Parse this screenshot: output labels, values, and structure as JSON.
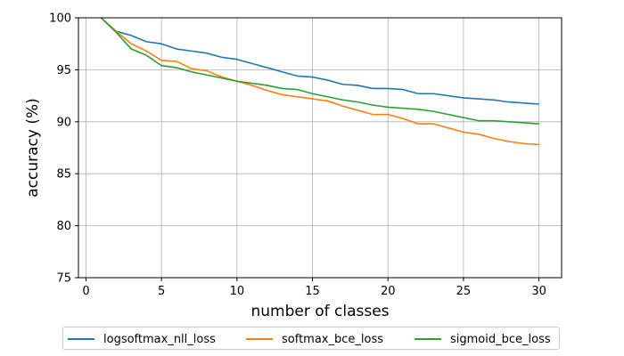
{
  "chart_data": {
    "type": "line",
    "xlabel": "number of classes",
    "ylabel": "accuracy (%)",
    "xlim": [
      -0.5,
      31.5
    ],
    "ylim": [
      75,
      100
    ],
    "xticks": [
      0,
      5,
      10,
      15,
      20,
      25,
      30
    ],
    "yticks": [
      75,
      80,
      85,
      90,
      95,
      100
    ],
    "grid": true,
    "legend_position": "bottom-center",
    "x": [
      1,
      2,
      3,
      4,
      5,
      6,
      7,
      8,
      9,
      10,
      11,
      12,
      13,
      14,
      15,
      16,
      17,
      18,
      19,
      20,
      21,
      22,
      23,
      24,
      25,
      26,
      27,
      28,
      29,
      30
    ],
    "series": [
      {
        "name": "logsoftmax_nll_loss",
        "color": "#1f77b4",
        "values": [
          100.0,
          98.7,
          98.3,
          97.7,
          97.5,
          97.0,
          96.8,
          96.6,
          96.2,
          96.0,
          95.6,
          95.2,
          94.8,
          94.4,
          94.3,
          94.0,
          93.6,
          93.5,
          93.2,
          93.2,
          93.1,
          92.7,
          92.7,
          92.5,
          92.3,
          92.2,
          92.1,
          91.9,
          91.8,
          91.7
        ]
      },
      {
        "name": "softmax_bce_loss",
        "color": "#ff7f0e",
        "values": [
          100.0,
          98.7,
          97.5,
          96.8,
          95.9,
          95.8,
          95.1,
          94.9,
          94.3,
          93.9,
          93.5,
          93.0,
          92.6,
          92.4,
          92.2,
          92.0,
          91.5,
          91.1,
          90.7,
          90.7,
          90.3,
          89.8,
          89.8,
          89.4,
          89.0,
          88.8,
          88.4,
          88.1,
          87.9,
          87.8
        ]
      },
      {
        "name": "sigmoid_bce_loss",
        "color": "#2ca02c",
        "values": [
          100.0,
          98.6,
          97.0,
          96.4,
          95.4,
          95.2,
          94.8,
          94.5,
          94.2,
          93.9,
          93.7,
          93.5,
          93.2,
          93.1,
          92.7,
          92.4,
          92.1,
          91.9,
          91.6,
          91.4,
          91.3,
          91.2,
          91.0,
          90.7,
          90.4,
          90.1,
          90.1,
          90.0,
          89.9,
          89.8
        ]
      }
    ]
  }
}
